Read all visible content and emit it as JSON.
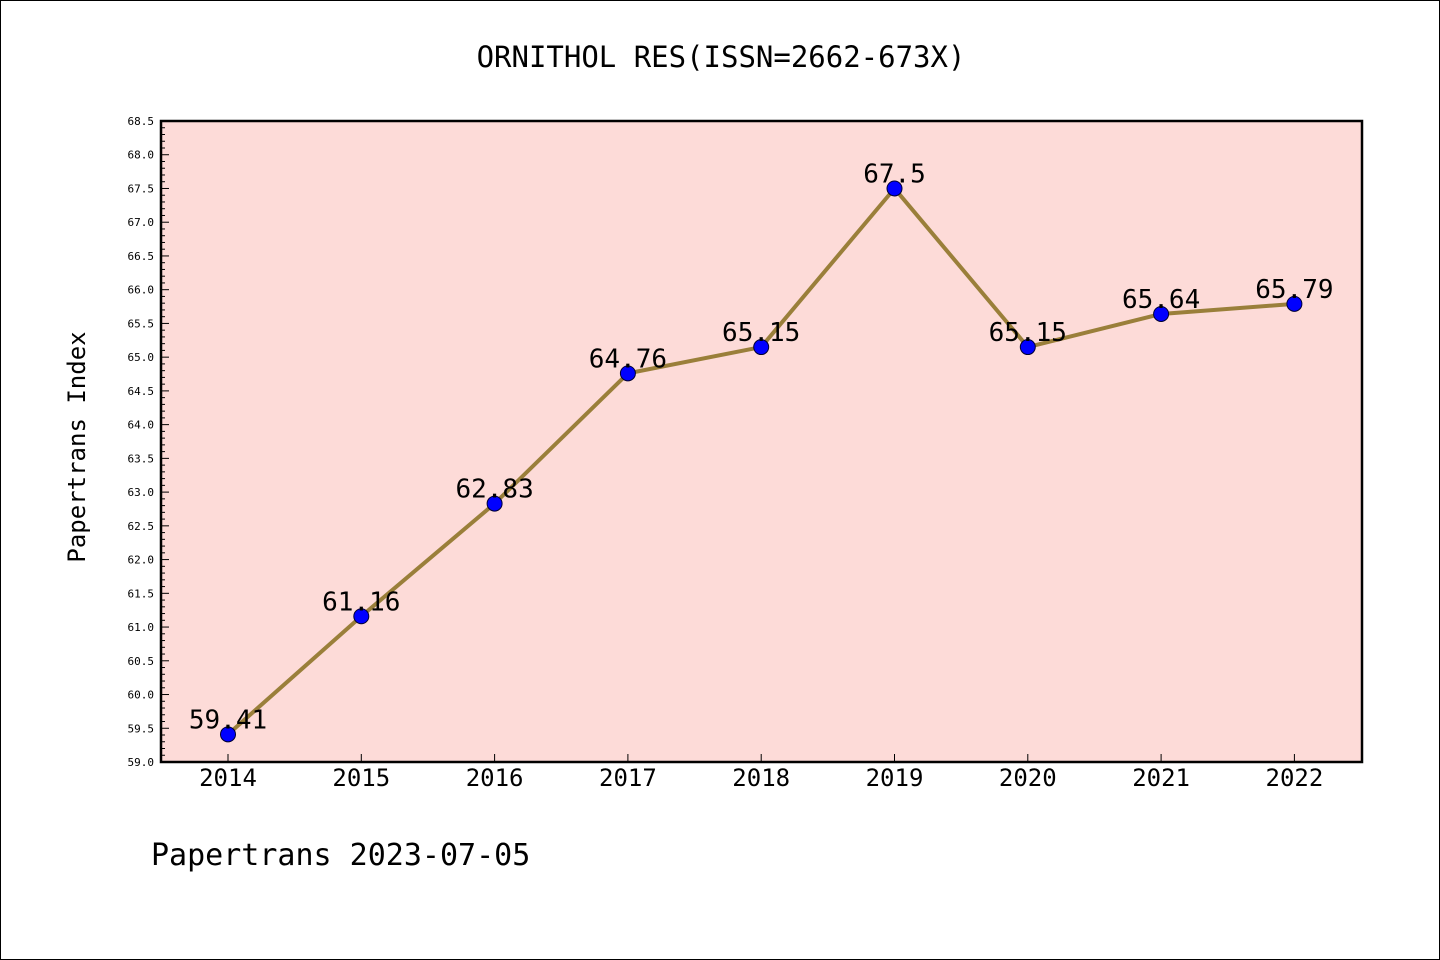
{
  "chart_data": {
    "type": "line",
    "title": "ORNITHOL RES(ISSN=2662-673X)",
    "xlabel": "",
    "ylabel": "Papertrans Index",
    "categories": [
      "2014",
      "2015",
      "2016",
      "2017",
      "2018",
      "2019",
      "2020",
      "2021",
      "2022"
    ],
    "values": [
      59.41,
      61.16,
      62.83,
      64.76,
      65.15,
      67.5,
      65.15,
      65.64,
      65.79
    ],
    "data_labels": [
      "59.41",
      "61.16",
      "62.83",
      "64.76",
      "65.15",
      "67.5",
      "65.15",
      "65.64",
      "65.79"
    ],
    "ylim": [
      59.0,
      68.5
    ],
    "yticks": [
      "59.0",
      "59.5",
      "60.0",
      "60.5",
      "61.0",
      "61.5",
      "62.0",
      "62.5",
      "63.0",
      "63.5",
      "64.0",
      "64.5",
      "65.0",
      "65.5",
      "66.0",
      "66.5",
      "67.0",
      "67.5",
      "68.0",
      "68.5"
    ],
    "grid": false,
    "line_color": "#9a7f3a",
    "marker_color": "#0000ff",
    "plot_background": "#fddbd8",
    "footer": "Papertrans 2023-07-05"
  }
}
